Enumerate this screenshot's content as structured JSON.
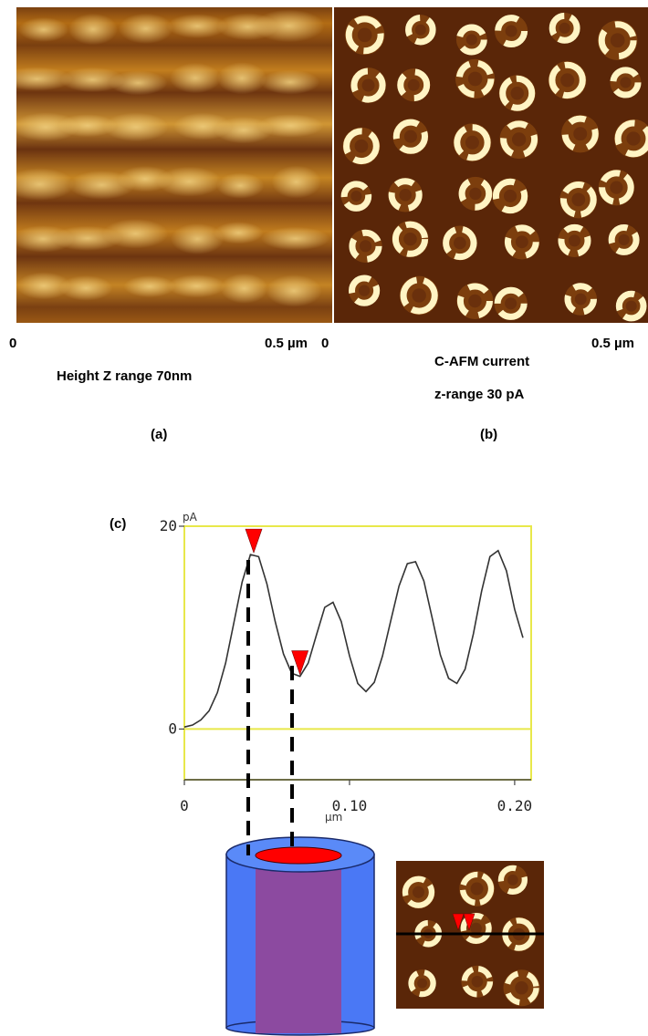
{
  "panel_a": {
    "axis_start": "0",
    "axis_end": "0.5 µm",
    "caption": "Height Z range 70nm",
    "label": "(a)"
  },
  "panel_b": {
    "axis_start": "0",
    "axis_end": "0.5 µm",
    "caption_line1": "C-AFM current",
    "caption_line2": "z-range 30 pA",
    "label": "(b)"
  },
  "panel_c": {
    "label": "(c)"
  },
  "colors": {
    "afm_dark": "#4a1e08",
    "afm_mid": "#a8620f",
    "afm_bright": "#fff6c8",
    "frame_yellow": "#e8e84a",
    "marker_red": "#ff0000",
    "cylinder_blue": "#4a78f5",
    "cylinder_purple": "#8c4aa0"
  },
  "chart_data": {
    "type": "line",
    "title": "",
    "xlabel": "µm",
    "ylabel": "pA",
    "xlim": [
      0,
      0.21
    ],
    "ylim": [
      -5,
      20
    ],
    "y_ticks": [
      "20",
      "0"
    ],
    "x_ticks": [
      "0",
      "0.10",
      "0.20"
    ],
    "x_tick_values": [
      0,
      0.1,
      0.2
    ],
    "series": [
      {
        "values_x": [
          0,
          0.005,
          0.01,
          0.015,
          0.02,
          0.025,
          0.03,
          0.035,
          0.04,
          0.045,
          0.05,
          0.055,
          0.06,
          0.065,
          0.07,
          0.075,
          0.08,
          0.085,
          0.09,
          0.095,
          0.1,
          0.105,
          0.11,
          0.115,
          0.12,
          0.125,
          0.13,
          0.135,
          0.14,
          0.145,
          0.15,
          0.155,
          0.16,
          0.165,
          0.17,
          0.175,
          0.18,
          0.185,
          0.19,
          0.195,
          0.2,
          0.205
        ],
        "values_y": [
          0.2,
          0.4,
          0.9,
          1.8,
          3.6,
          6.5,
          10.5,
          14.5,
          17.2,
          17.0,
          14.3,
          10.6,
          7.4,
          5.5,
          5.2,
          6.5,
          9.3,
          12.0,
          12.5,
          10.6,
          7.2,
          4.5,
          3.7,
          4.6,
          7.2,
          10.7,
          14.1,
          16.3,
          16.5,
          14.6,
          11.0,
          7.3,
          5.0,
          4.5,
          5.9,
          9.4,
          13.6,
          17.0,
          17.6,
          15.6,
          11.8,
          9.0
        ]
      }
    ],
    "markers": [
      {
        "x": 0.042,
        "y": 17.2
      },
      {
        "x": 0.07,
        "y": 5.2
      }
    ]
  }
}
